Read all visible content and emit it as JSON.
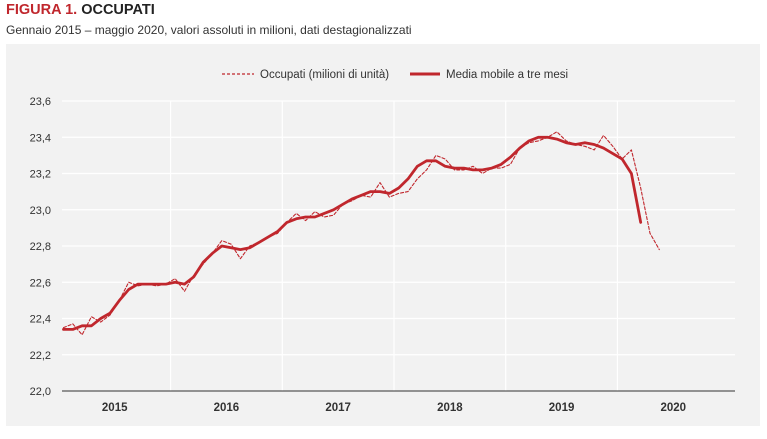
{
  "figure": {
    "number": "FIGURA 1.",
    "title": "OCCUPATI",
    "subtitle": "Gennaio 2015 – maggio 2020, valori assoluti in milioni, dati destagionalizzati"
  },
  "colors": {
    "series": "#c0272d",
    "panel": "#f2f2f2",
    "grid": "#ffffff"
  },
  "chart_data": {
    "type": "line",
    "xlabel": "",
    "ylabel": "",
    "ylim": [
      22.0,
      23.6
    ],
    "yticks": [
      "22,0",
      "22,2",
      "22,4",
      "22,6",
      "22,8",
      "23,0",
      "23,2",
      "23,4",
      "23,6"
    ],
    "xticks": [
      "2015",
      "2016",
      "2017",
      "2018",
      "2019",
      "2020"
    ],
    "grid": true,
    "legend": "top-center",
    "start": "2015-01",
    "series": [
      {
        "name": "Occupati (milioni di unità)",
        "style": "dashed",
        "values": [
          22.35,
          22.37,
          22.31,
          22.41,
          22.38,
          22.42,
          22.5,
          22.6,
          22.58,
          22.59,
          22.58,
          22.59,
          22.62,
          22.55,
          22.64,
          22.7,
          22.76,
          22.83,
          22.81,
          22.73,
          22.8,
          22.82,
          22.85,
          22.87,
          22.93,
          22.98,
          22.94,
          22.99,
          22.96,
          22.97,
          23.03,
          23.05,
          23.08,
          23.07,
          23.15,
          23.07,
          23.09,
          23.1,
          23.17,
          23.22,
          23.3,
          23.28,
          23.22,
          23.22,
          23.24,
          23.2,
          23.23,
          23.23,
          23.25,
          23.34,
          23.37,
          23.38,
          23.4,
          23.43,
          23.38,
          23.36,
          23.35,
          23.33,
          23.41,
          23.35,
          23.28,
          23.33,
          23.12,
          22.87,
          22.78
        ]
      },
      {
        "name": "Media mobile a tre mesi",
        "style": "solid",
        "values": [
          22.34,
          22.34,
          22.36,
          22.36,
          22.4,
          22.43,
          22.5,
          22.56,
          22.59,
          22.59,
          22.59,
          22.59,
          22.6,
          22.59,
          22.63,
          22.71,
          22.76,
          22.8,
          22.79,
          22.78,
          22.79,
          22.82,
          22.85,
          22.88,
          22.93,
          22.95,
          22.96,
          22.96,
          22.98,
          23.0,
          23.03,
          23.06,
          23.08,
          23.1,
          23.1,
          23.09,
          23.12,
          23.17,
          23.24,
          23.27,
          23.27,
          23.24,
          23.23,
          23.23,
          23.22,
          23.22,
          23.23,
          23.25,
          23.29,
          23.34,
          23.38,
          23.4,
          23.4,
          23.39,
          23.37,
          23.36,
          23.37,
          23.36,
          23.34,
          23.31,
          23.28,
          23.2,
          22.93
        ]
      }
    ]
  }
}
